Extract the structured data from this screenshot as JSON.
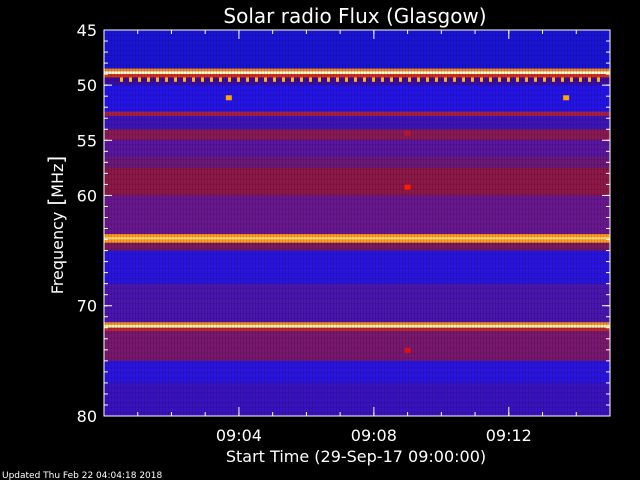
{
  "chart_data": {
    "type": "heatmap",
    "title": "Solar radio Flux (Glasgow)",
    "ylabel_text": "Frequency",
    "ylabel_bracket_open": "[",
    "ylabel_unit": "MHz",
    "ylabel_bracket_close": "]",
    "xlabel": "Start Time (29-Sep-17 09:00:00)",
    "footer": "Updated Thu Feb 22 04:04:18 2018",
    "x_range_minutes": [
      0,
      15
    ],
    "ylim": [
      45,
      80
    ],
    "y_ticks": [
      {
        "value": 45,
        "label": "45"
      },
      {
        "value": 50,
        "label": "50"
      },
      {
        "value": 55,
        "label": "55"
      },
      {
        "value": 60,
        "label": "60"
      },
      {
        "value": 70,
        "label": "70"
      },
      {
        "value": 80,
        "label": "80"
      }
    ],
    "x_ticks": [
      {
        "value": 4,
        "label": "09:04"
      },
      {
        "value": 8,
        "label": "09:08"
      },
      {
        "value": 12,
        "label": "09:12"
      }
    ],
    "bands": [
      {
        "from": 45.0,
        "to": 48.5,
        "color": "#1a14d6"
      },
      {
        "from": 48.5,
        "to": 48.75,
        "color": "#ff8a1a"
      },
      {
        "from": 48.75,
        "to": 49.0,
        "color": "#fffbd0"
      },
      {
        "from": 49.0,
        "to": 49.3,
        "color": "#e03010"
      },
      {
        "from": 49.3,
        "to": 50.0,
        "color": "#3a0ea0"
      },
      {
        "from": 50.0,
        "to": 52.4,
        "color": "#2414e8"
      },
      {
        "from": 52.4,
        "to": 52.8,
        "color": "#a8204a"
      },
      {
        "from": 52.8,
        "to": 54.0,
        "color": "#3c14b8"
      },
      {
        "from": 54.0,
        "to": 55.0,
        "color": "#8a1a55"
      },
      {
        "from": 55.0,
        "to": 56.5,
        "color": "#5a16a0"
      },
      {
        "from": 56.5,
        "to": 57.5,
        "color": "#6c1878"
      },
      {
        "from": 57.5,
        "to": 60.0,
        "color": "#8e1848"
      },
      {
        "from": 60.0,
        "to": 63.5,
        "color": "#6a1890"
      },
      {
        "from": 63.5,
        "to": 64.3,
        "color": "#ff9a20"
      },
      {
        "from": 64.3,
        "to": 65.0,
        "color": "#7a1860"
      },
      {
        "from": 65.0,
        "to": 68.0,
        "color": "#2a14e0"
      },
      {
        "from": 68.0,
        "to": 71.5,
        "color": "#4a16b0"
      },
      {
        "from": 71.5,
        "to": 71.75,
        "color": "#ff9a20"
      },
      {
        "from": 71.75,
        "to": 72.0,
        "color": "#fff0b0"
      },
      {
        "from": 72.0,
        "to": 72.3,
        "color": "#c02828"
      },
      {
        "from": 72.3,
        "to": 75.0,
        "color": "#7a1870"
      },
      {
        "from": 75.0,
        "to": 77.0,
        "color": "#2a14e0"
      },
      {
        "from": 77.0,
        "to": 80.0,
        "color": "#3a12c0"
      }
    ],
    "spots": [
      {
        "x": 9.0,
        "y": 59.2,
        "color": "#ff1a00"
      },
      {
        "x": 9.0,
        "y": 74.0,
        "color": "#e01010"
      },
      {
        "x": 9.0,
        "y": 54.3,
        "color": "#b01830"
      },
      {
        "x": 3.7,
        "y": 51.1,
        "color": "#ffa500"
      },
      {
        "x": 13.7,
        "y": 51.1,
        "color": "#ffa500"
      }
    ]
  }
}
